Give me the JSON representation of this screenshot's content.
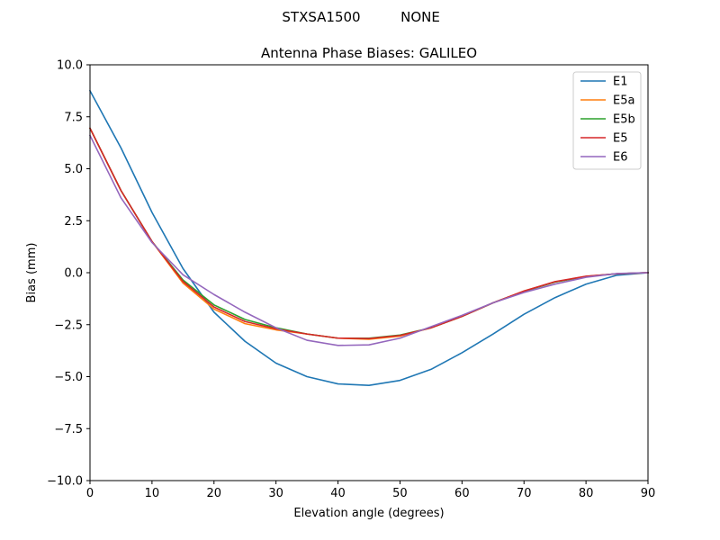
{
  "suptitle": {
    "station": "STXSA1500",
    "radome": "NONE"
  },
  "chart_data": {
    "type": "line",
    "title": "Antenna Phase Biases: GALILEO",
    "xlabel": "Elevation angle (degrees)",
    "ylabel": "Bias (mm)",
    "xlim": [
      0,
      90
    ],
    "ylim": [
      -10,
      10
    ],
    "xticks": [
      0,
      10,
      20,
      30,
      40,
      50,
      60,
      70,
      80,
      90
    ],
    "yticks": [
      -10.0,
      -7.5,
      -5.0,
      -2.5,
      0.0,
      2.5,
      5.0,
      7.5,
      10.0
    ],
    "ytick_labels": [
      "−10.0",
      "−7.5",
      "−5.0",
      "−2.5",
      "0.0",
      "2.5",
      "5.0",
      "7.5",
      "10.0"
    ],
    "xtick_labels": [
      "0",
      "10",
      "20",
      "30",
      "40",
      "50",
      "60",
      "70",
      "80",
      "90"
    ],
    "grid": false,
    "legend_position": "top-right",
    "x": [
      0,
      5,
      10,
      15,
      20,
      25,
      30,
      35,
      40,
      45,
      50,
      55,
      60,
      65,
      70,
      75,
      80,
      85,
      90
    ],
    "series": [
      {
        "name": "E1",
        "color": "#1f77b4",
        "values": [
          8.75,
          6.0,
          2.9,
          0.2,
          -1.9,
          -3.3,
          -4.35,
          -5.0,
          -5.35,
          -5.42,
          -5.18,
          -4.65,
          -3.85,
          -2.95,
          -2.0,
          -1.2,
          -0.55,
          -0.12,
          0.0
        ]
      },
      {
        "name": "E5a",
        "color": "#ff7f0e",
        "values": [
          6.95,
          3.95,
          1.5,
          -0.5,
          -1.75,
          -2.45,
          -2.75,
          -2.95,
          -3.15,
          -3.2,
          -3.05,
          -2.65,
          -2.1,
          -1.45,
          -0.88,
          -0.45,
          -0.18,
          -0.05,
          0.0
        ]
      },
      {
        "name": "E5b",
        "color": "#2ca02c",
        "values": [
          6.95,
          3.95,
          1.5,
          -0.35,
          -1.55,
          -2.25,
          -2.65,
          -2.95,
          -3.15,
          -3.15,
          -3.0,
          -2.65,
          -2.1,
          -1.45,
          -0.9,
          -0.45,
          -0.18,
          -0.05,
          0.0
        ]
      },
      {
        "name": "E5",
        "color": "#d62728",
        "values": [
          6.95,
          3.95,
          1.5,
          -0.42,
          -1.65,
          -2.35,
          -2.7,
          -2.95,
          -3.15,
          -3.17,
          -3.02,
          -2.65,
          -2.1,
          -1.45,
          -0.88,
          -0.43,
          -0.17,
          -0.05,
          0.0
        ]
      },
      {
        "name": "E6",
        "color": "#9467bd",
        "values": [
          6.6,
          3.6,
          1.45,
          -0.1,
          -1.05,
          -1.9,
          -2.65,
          -3.25,
          -3.5,
          -3.47,
          -3.15,
          -2.6,
          -2.05,
          -1.45,
          -0.95,
          -0.55,
          -0.22,
          -0.04,
          0.0
        ]
      }
    ]
  }
}
